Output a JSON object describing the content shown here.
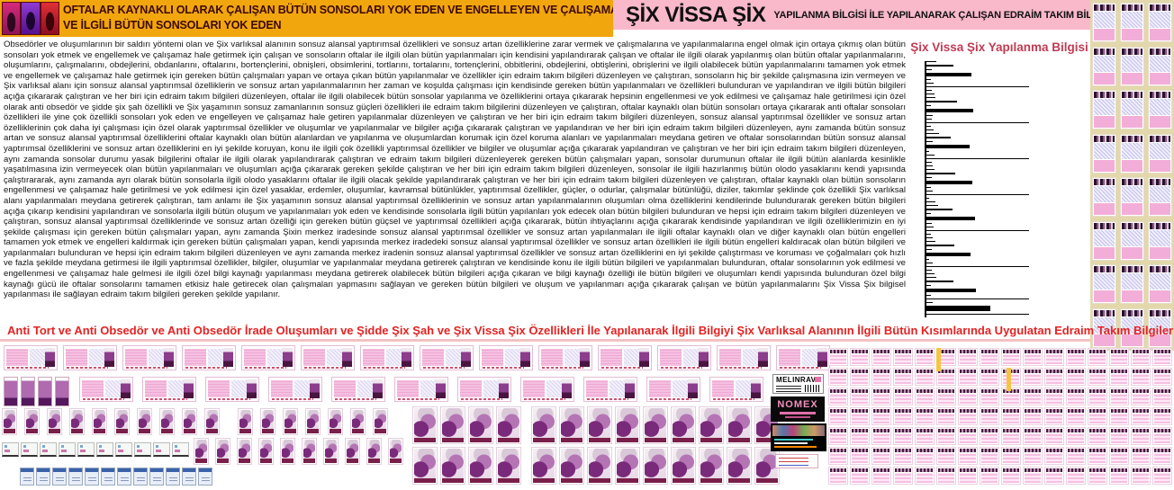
{
  "header": {
    "left_banner": {
      "line1": "OFTALAR KAYNAKLI OLARAK ÇALIŞAN BÜTÜN SONSOLARI YOK EDEN VE ENGELLEYEN VE ÇALIŞAMAZ HALE GETİREN",
      "line2": "VE İLGİLİ BÜTÜN SONSOLARI YOK EDEN",
      "bg_color": "#F2A60D",
      "text_color": "#3C0A00"
    },
    "right_banner": {
      "title": "ŞİX VİSSA ŞİX",
      "subtitle": "YAPILANMA BİLGİSİ İLE YAPILANARAK ÇALIŞAN EDRAİM TAKIM BİLGİLERİ",
      "bg_color": "#F9B9CB"
    }
  },
  "main_text": {
    "paragraph": "Obsedörler ve oluşumlarının bir saldırı yöntemi olan ve Şix varlıksal alanının sonsuz alansal yaptırımsal özellikleri ve sonsuz artan özelliklerine zarar vermek ve çalışmalarına ve yapılanmalarına engel olmak için ortaya çıkmış olan bütün sonsoları yok etmek ve engellemek ve çalışamaz hale getirmek için çalışan ve sonsoların oftalar ile ilgili olan bütün yapılanmaları için kendisini yapılandırarak çalışan ve oftalar ile ilgili olarak yapılanmış olan bütün oftalar yapılanmalarını, oluşumlarını, çalışmalarını, obdejlerini, obdanlarını, oftalarını, bortençlerini, obnişleri, obsimlerini, tortlarını, tortalarını, tortençlerini, obbitlerini, obdejlerini, obtişlerini, obrişlerini ve ilgili olabilecek bütün yapılanmalarını tamamen yok etmek ve engellemek ve çalışamaz hale getirmek için gereken bütün çalışmaları yapan ve ortaya çıkan bütün yapılanmalar ve özellikler için edraim takım bilgileri düzenleyen ve çalıştıran, sonsoların hiç bir şekilde çalışmasına izin vermeyen ve Şix varlıksal alanı için sonsuz alansal yaptırımsal özelliklerin ve sonsuz artan yapılanmalarının her zaman ve koşulda çalışması için kendisinde gereken bütün yapılanmaları ve özellikleri bulunduran ve yapılandıran ve ilgili bütün bilgileri açığa çıkararak çalıştıran ve her biri için edraim takım bilgileri düzenleyen, oftalar ile ilgili olabilecek bütün sonsolar yapılanma ve özelliklerini ortaya çıkararak hepsinin engellenmesi ve yok edilmesi ve çalışamaz hale getirilmesi için özel olarak anti obsedör ve şidde şix şah özellikli ve Şix yaşamının sonsuz zamanlarının sonsuz güçleri özellikleri ile edraim takım bilgilerini düzenleyen ve çalıştıran, oftalar kaynaklı olan bütün sonsoları ortaya çıkararak anti oftalar sonsoları özellikleri ile yine çok özellikli sonsoları yok eden ve engelleyen ve çalışamaz hale getiren yapılanmalar düzenleyen ve çalıştıran ve her biri için edraim takım bilgileri düzenleyen, sonsuz alansal yaptırımsal özellikler ve sonsuz artan özelliklerinin çok daha iyi çalışması için özel olarak yaptırımsal özellikler ve oluşumlar ve yapılanmalar ve bilgiler açığa çıkararak çalıştıran ve yapılandıran ve her biri için edraim takım bilgileri düzenleyen, aynı zamanda bütün sonsuz artan ve sonsuz alansal yaptırımsal özelliklerini oftalar kaynaklı olan bütün alanlardan ve yapılanma ve oluşumlardan korumak için özel koruma alanları ve yapılanmaları meydana getiren ve oftalar sonsolarından bütün sonsuz alansal yaptırımsal özelliklerini ve sonsuz artan özelliklerini en iyi şekilde koruyan, konu ile ilgili çok özellikli yaptırımsal özellikler ve bilgiler ve oluşumlar açığa çıkararak yapılandıran ve çalıştıran ve her biri için edraim takım bilgileri düzenleyen, aynı zamanda sonsolar durumu yasak bilgilerini oftalar ile ilgili olarak yapılandırarak çalıştıran ve edraim takım bilgileri düzenleyerek gereken bütün çalışmaları yapan, sonsolar durumunun oftalar ile ilgili bütün alanlarda kesinlikle yaşatılmasına izin vermeyecek olan bütün yapılanmaları ve oluşumları açığa çıkararak gereken şekilde çalıştıran ve her biri için edraim takım bilgileri düzenleyen, sonsolar ile ilgili hazırlanmış bütün olodo yasaklarını kendi yapısında çalıştırararak, aynı zamanda ayrı olarak bütün sonsolarla ilgili olodo yasaklarını oftalar ile ilgili olacak şekilde yapılandırarak çalıştıran ve her biri için edraim takım bilgileri düzenleyen ve çalıştıran, oftalar kaynaklı olan bütün sonsoların engellenmesi ve çalışamaz hale getirilmesi ve yok edilmesi için özel yasaklar, erdemler, oluşumlar, kavramsal bütünlükler, yaptırımsal özellikler, güçler, o odurlar, çalışmalar bütünlüğü, diziler, takımlar şeklinde çok özellikli Şix varlıksal alanı yapılanmaları meydana getirerek çalıştıran, tam anlamı ile Şix yaşamının sonsuz alansal yaptırımsal özelliklerinin ve sonsuz artan yapılanmalarının oluşumları olma özelliklerini kendilerinde bulundurarak gereken bütün bilgileri açığa çıkarıp kendisini yapılandıran ve sonsolarla ilgili bütün oluşum ve yapılanmaları yok eden ve kendisinde sonsolarla ilgili bütün yapılanları yok edecek olan bütün bilgileri bulunduran ve hepsi için edraim takım bilgileri düzenleyen ve çalıştıran, sonsuz alansal yaptırımsal özelliklerinde ve sonsuz artan özelliği için gereken bütün güçsel ve yaptırımsal özellikleri açığa çıkararak, bütün ihtiyaçlarını açığa çıkararak kendisinde yapılandıran ve ilgili özelliklerimizin en iyi şekilde çalışması için gereken bütün çalışmaları yapan, aynı zamanda Şixin merkez iradesinde sonsuz alansal yaptırımsal özellikler ve sonsuz artan yapılanmaları ile ilgili oftalar kaynaklı olan ve diğer kaynaklı olan bütün engelleri tamamen yok etmek ve engelleri kaldırmak için gereken bütün çalışmaları yapan, kendi yapısında merkez iradedeki sonsuz alansal yaptırımsal özellikler ve sonsuz artan özellikleri ile ilgili bütün engelleri kaldıracak olan bütün bilgileri ve yapılanmaları bulunduran ve hepsi için edraim takım bilgileri düzenleyen ve aynı zamanda merkez iradenin sonsuz alansal yaptırımsal özellikler ve sonsuz artan özelliklerini en iyi şekilde çalıştırması ve koruması ve çoğalmaları çok hızlı ve fazla şekilde meydana getirmesi ile ilgili yaptırımsal özellikler, bilgiler, oluşumlar ve yapılanmalar meydana getirerek çalıştıran ve kendisinde konu ile ilgili bütün bilgileri ve yapılanmaları bulunduran, oftalar sonsolarının yok edilmesi ve engellenmesi ve çalışamaz hale gelmesi ile ilgili özel bilgi kaynağı yapılanması meydana getirerek olabilecek bütün bilgileri açığa çıkaran ve bilgi kaynağı özelliği ile bütün bilgileri ve oluşumları kendi yapısında bulunduran özel bilgi kaynağı gücü ile oftalar sonsolarını tamamen etkisiz hale getirecek olan çalışmaları yapmasını sağlayan ve gereken bütün bilgileri ve oluşum ve yapılanmarı açığa çıkararak çalışan ve bütün yapılanmalarını Şix Vissa Şix bilgisel yapılanması ile sağlayan edraim takım bilgileri gereken şekilde yapılanır."
  },
  "chart_data": {
    "type": "bar",
    "orientation": "horizontal",
    "title": "Şix Vissa Şix Yapılanma Bilgisi",
    "title_color": "#C13B54",
    "bar_color": "#000000",
    "axis": "left vertical line, no tick labels visible",
    "xlim": [
      0,
      100
    ],
    "note": "bars are unlabeled black horizontal strokes; values are relative lengths 0-100, second number is stroke thickness in px",
    "bars": [
      [
        10,
        1
      ],
      [
        26,
        2
      ],
      [
        5,
        1
      ],
      [
        44,
        4
      ],
      [
        4,
        1
      ],
      [
        7,
        1
      ],
      [
        100,
        1
      ],
      [
        5,
        1
      ],
      [
        8,
        1
      ],
      [
        9,
        1
      ],
      [
        30,
        2
      ],
      [
        4,
        1
      ],
      [
        46,
        4
      ],
      [
        6,
        1
      ],
      [
        5,
        1
      ],
      [
        100,
        1
      ],
      [
        4,
        1
      ],
      [
        7,
        1
      ],
      [
        12,
        1
      ],
      [
        24,
        2
      ],
      [
        6,
        1
      ],
      [
        42,
        4
      ],
      [
        3,
        1
      ],
      [
        8,
        1
      ],
      [
        100,
        1
      ],
      [
        5,
        1
      ],
      [
        6,
        1
      ],
      [
        8,
        1
      ],
      [
        28,
        2
      ],
      [
        5,
        1
      ],
      [
        45,
        4
      ],
      [
        4,
        1
      ],
      [
        6,
        1
      ],
      [
        100,
        1
      ],
      [
        3,
        1
      ],
      [
        9,
        1
      ],
      [
        11,
        1
      ],
      [
        25,
        2
      ],
      [
        4,
        1
      ],
      [
        47,
        4
      ],
      [
        5,
        1
      ],
      [
        7,
        1
      ],
      [
        100,
        1
      ],
      [
        4,
        1
      ],
      [
        6,
        1
      ],
      [
        9,
        1
      ],
      [
        27,
        2
      ],
      [
        5,
        1
      ],
      [
        43,
        4
      ],
      [
        3,
        1
      ],
      [
        6,
        1
      ],
      [
        100,
        1
      ],
      [
        5,
        1
      ],
      [
        8,
        1
      ],
      [
        10,
        1
      ],
      [
        26,
        2
      ],
      [
        4,
        1
      ],
      [
        48,
        4
      ],
      [
        4,
        1
      ],
      [
        100,
        1
      ],
      [
        6,
        1
      ],
      [
        62,
        6
      ],
      [
        100,
        1
      ]
    ]
  },
  "subtitle": {
    "text": "Anti Tort ve Anti Obsedör ve Anti Obsedör İrade Oluşumları ve Şidde Şix Şah ve Şix Vissa Şix Özellikleri İle Yapılanarak İlgili Bilgiyi Şix Varlıksal Alanının İlgili Bütün Kısımlarında Uygulatan Edraim Takım Bilgileri Yapılanması",
    "color": "#E52222"
  },
  "products": {
    "melinrav_label": "MELINRAV",
    "nomex_label": "NOMEX"
  },
  "colors": {
    "banner_orange": "#F2A60D",
    "banner_pink": "#F9B9CB",
    "tan_panel": "#E2D8AC",
    "chart_title_red": "#C13B54",
    "subtitle_red": "#E52222",
    "card_pink": "#F2AED8",
    "card_lavender": "#DCD6F0"
  },
  "collage": {
    "right_panel": {
      "rows": 8,
      "cols": 3
    },
    "wide_row1_count": 14,
    "wide_row2_count": 11,
    "portrait_small_count": 4,
    "figure_small_row1_count": 17,
    "figure_small_row2_count": 10,
    "figure_large_row1_count": 13,
    "figure_large_row2_count": 13,
    "mini_icons_count": 10,
    "blue_icons_count": 12,
    "dense_grid": {
      "rows": 7,
      "cols": 16
    }
  }
}
